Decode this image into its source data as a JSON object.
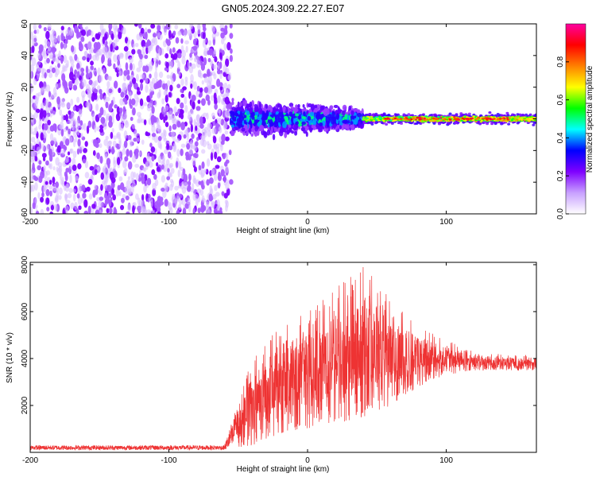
{
  "chart_data": [
    {
      "type": "heatmap",
      "title": "GN05.2024.309.22.27.E07",
      "xlabel": "Height of straight line (km)",
      "ylabel": "Frequency (Hz)",
      "xlim": [
        -200,
        165
      ],
      "ylim": [
        -60,
        60
      ],
      "x_ticks": [
        -200,
        -100,
        0,
        100
      ],
      "y_ticks": [
        -60,
        -40,
        -20,
        0,
        20,
        40,
        60
      ],
      "grid": false,
      "colorbar": {
        "label": "Normalized spectral amplitude",
        "range": [
          0,
          1
        ],
        "ticks": [
          "0.0",
          "0.2",
          "0.4",
          "0.6",
          "0.8"
        ],
        "colors": [
          "#ffffff",
          "#c8a0ff",
          "#7f00ff",
          "#0000ff",
          "#00ffff",
          "#00ff00",
          "#ffff00",
          "#ff8000",
          "#ff0000",
          "#ff00a0"
        ]
      },
      "description_regions": [
        {
          "x_range": [
            -200,
            -55
          ],
          "freq_range": [
            -60,
            60
          ],
          "amplitude_range": [
            0.0,
            0.1
          ]
        },
        {
          "x_range": [
            -55,
            40
          ],
          "freq_range": [
            -15,
            15
          ],
          "amplitude_range": [
            0.1,
            0.35
          ]
        },
        {
          "x_range": [
            40,
            165
          ],
          "freq_range": [
            -5,
            5
          ],
          "amplitude_range": [
            0.3,
            0.95
          ]
        }
      ]
    },
    {
      "type": "line",
      "xlabel": "Height of straight line (km)",
      "ylabel": "SNR (10 * v/v)",
      "xlim": [
        -200,
        165
      ],
      "ylim": [
        0,
        8100
      ],
      "x_ticks": [
        -200,
        -100,
        0,
        100
      ],
      "y_ticks": [
        2000,
        4000,
        6000,
        8000
      ],
      "grid": false,
      "series_color": "#ee3333",
      "envelope": [
        {
          "x": -200,
          "low": 100,
          "high": 300
        },
        {
          "x": -60,
          "low": 100,
          "high": 300
        },
        {
          "x": -40,
          "low": 300,
          "high": 4000
        },
        {
          "x": -20,
          "low": 800,
          "high": 5500
        },
        {
          "x": 0,
          "low": 1000,
          "high": 6000
        },
        {
          "x": 20,
          "low": 1200,
          "high": 7000
        },
        {
          "x": 40,
          "low": 1500,
          "high": 8000
        },
        {
          "x": 60,
          "low": 2000,
          "high": 6500
        },
        {
          "x": 80,
          "low": 2800,
          "high": 5500
        },
        {
          "x": 100,
          "low": 3300,
          "high": 4800
        },
        {
          "x": 120,
          "low": 3500,
          "high": 4300
        },
        {
          "x": 165,
          "low": 3500,
          "high": 4100
        }
      ]
    }
  ]
}
